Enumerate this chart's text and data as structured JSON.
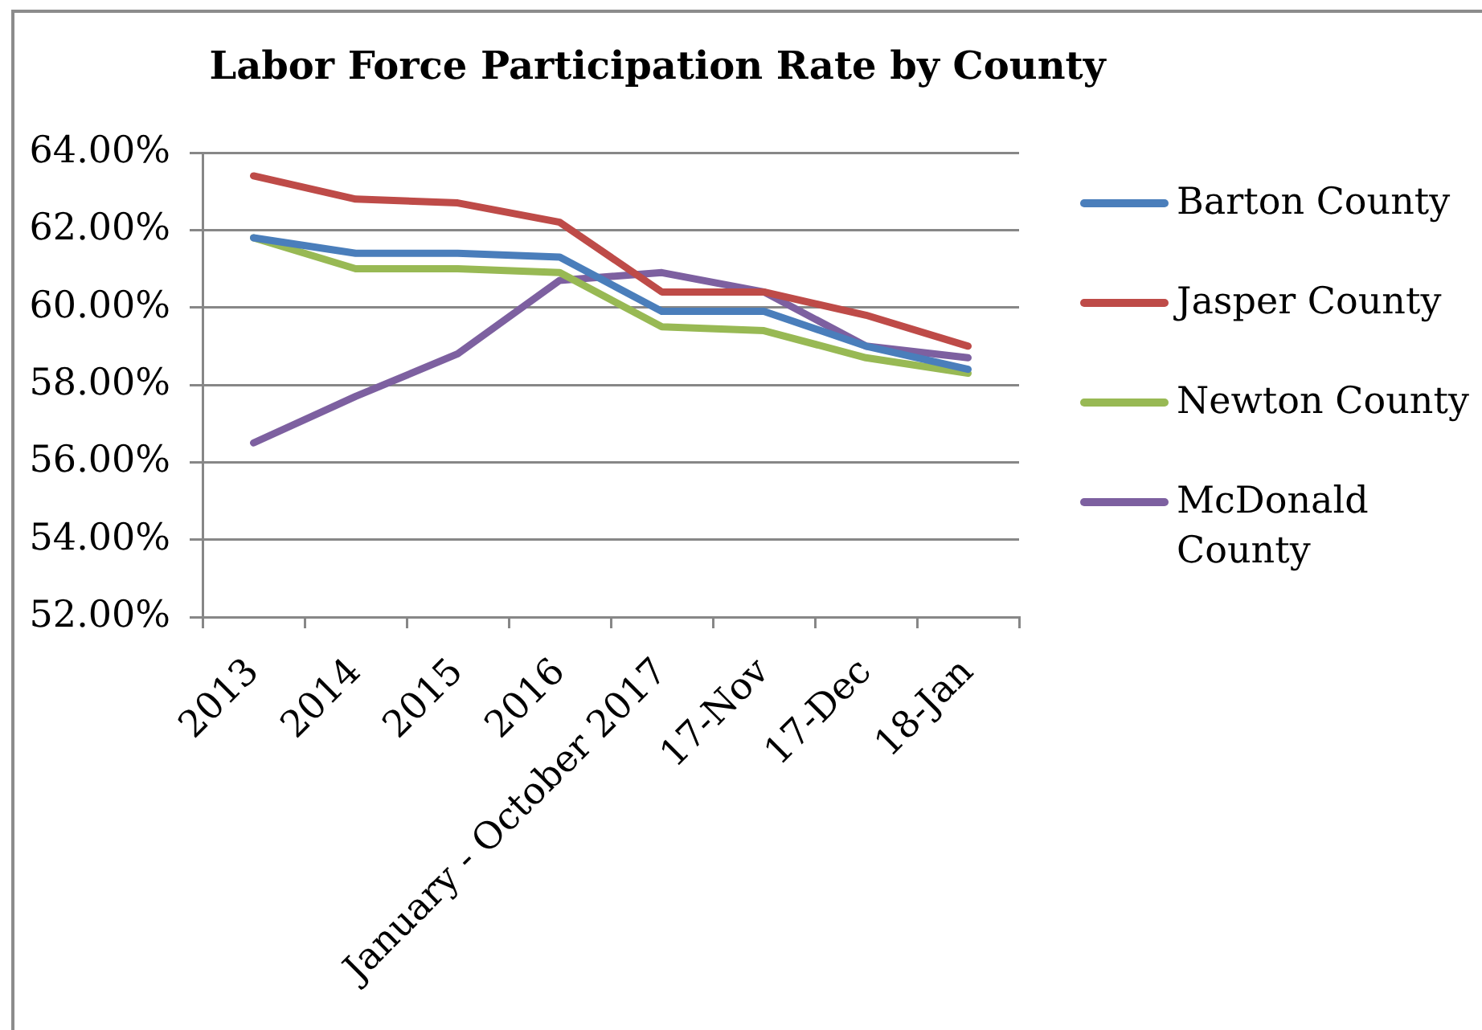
{
  "chart_data": {
    "type": "line",
    "title": "Labor Force Participation Rate by County",
    "categories": [
      "2013",
      "2014",
      "2015",
      "2016",
      "January - October 2017",
      "17-Nov",
      "17-Dec",
      "18-Jan"
    ],
    "series": [
      {
        "name": "Barton County",
        "color": "#4a7ebb",
        "values": [
          61.8,
          61.4,
          61.4,
          61.3,
          59.9,
          59.9,
          59.0,
          58.4
        ]
      },
      {
        "name": "Jasper County",
        "color": "#be4b48",
        "values": [
          63.4,
          62.8,
          62.7,
          62.2,
          60.4,
          60.4,
          59.8,
          59.0
        ]
      },
      {
        "name": "Newton County",
        "color": "#98b954",
        "values": [
          61.8,
          61.0,
          61.0,
          60.9,
          59.5,
          59.4,
          58.7,
          58.3
        ]
      },
      {
        "name": "McDonald County",
        "color": "#7d60a0",
        "values": [
          56.5,
          57.7,
          58.8,
          60.7,
          60.9,
          60.4,
          59.0,
          58.7
        ]
      }
    ],
    "ylim": [
      52,
      64
    ],
    "yticks": [
      {
        "value": 52,
        "label": "52.00%"
      },
      {
        "value": 54,
        "label": "54.00%"
      },
      {
        "value": 56,
        "label": "56.00%"
      },
      {
        "value": 58,
        "label": "58.00%"
      },
      {
        "value": 60,
        "label": "60.00%"
      },
      {
        "value": 62,
        "label": "62.00%"
      },
      {
        "value": 64,
        "label": "64.00%"
      }
    ],
    "grid": "y",
    "legend": "right",
    "marker": "none",
    "line_style": "solid"
  }
}
